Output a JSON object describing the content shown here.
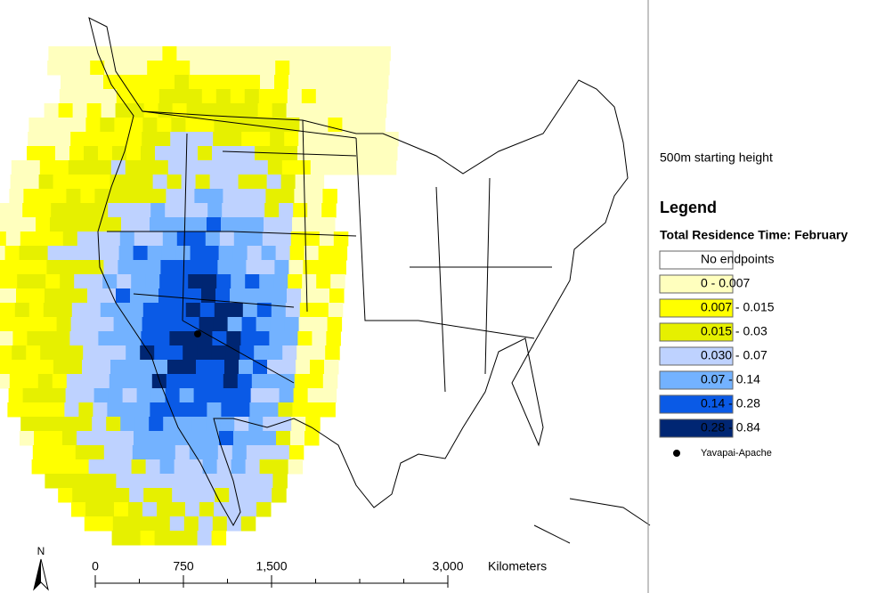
{
  "map": {
    "north": "N",
    "scale": {
      "ticks": [
        "0",
        "750",
        "1,500",
        "3,000"
      ],
      "unit": "Kilometers"
    },
    "source": {
      "label": "Yavapai-Apache"
    }
  },
  "panel": {
    "subtitle": "500m starting height",
    "legend": {
      "title": "Legend",
      "heading": "Total Residence Time: February",
      "items": [
        {
          "label": "No endpoints",
          "color": "#ffffff"
        },
        {
          "label": "0 - 0.007",
          "color": "#ffffbe"
        },
        {
          "label": "0.007 - 0.015",
          "color": "#ffff00"
        },
        {
          "label": "0.015 - 0.03",
          "color": "#e6f000"
        },
        {
          "label": "0.030 - 0.07",
          "color": "#bed2ff"
        },
        {
          "label": "0.07 - 0.14",
          "color": "#73b2ff"
        },
        {
          "label": "0.14 - 0.28",
          "color": "#0a5ae6"
        },
        {
          "label": "0.28 - 0.84",
          "color": "#002673"
        }
      ]
    }
  }
}
